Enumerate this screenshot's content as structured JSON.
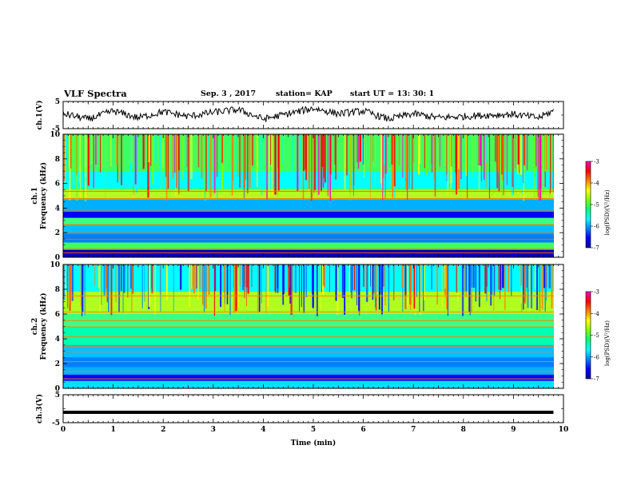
{
  "header": {
    "title": "VLF Spectra",
    "date": "Sep. 3 , 2017",
    "station": "station= KAP",
    "start": "start  UT =  13: 30: 1"
  },
  "colors": {
    "colormap": [
      "#0000aa",
      "#0000ff",
      "#0080ff",
      "#00ffff",
      "#00ff80",
      "#80ff00",
      "#ffff00",
      "#ff8000",
      "#ff0000",
      "#ff00c0",
      "#ffffff"
    ]
  },
  "chart_data": [
    {
      "id": "ch1-waveform",
      "type": "line",
      "ylabel": "ch.1(V)",
      "ylim": [
        -5,
        5
      ],
      "yticks": [
        "5",
        "-5"
      ],
      "xlim": [
        0,
        10
      ],
      "description_values": {
        "x": [
          0,
          0.5,
          1,
          1.5,
          2,
          2.5,
          3,
          3.5,
          4,
          4.5,
          5,
          5.5,
          6,
          6.5,
          7,
          7.5,
          8,
          8.5,
          9,
          9.5,
          9.8
        ],
        "y": [
          0.5,
          -1.5,
          1.5,
          -1,
          1.2,
          -0.5,
          1,
          2,
          -1.5,
          0.5,
          2.5,
          0.5,
          1.5,
          -1.5,
          0.5,
          -1,
          -0.5,
          0,
          0.3,
          -1,
          1.5
        ]
      }
    },
    {
      "id": "ch1-spectrogram",
      "type": "heatmap",
      "ylabel": "ch.1\nFrequency  (kHz)",
      "ylim": [
        0,
        10
      ],
      "yticks": [
        "0",
        "2",
        "4",
        "6",
        "8",
        "10"
      ],
      "xlim": [
        0,
        9.8
      ],
      "colorbar": {
        "label": "log(PSD)(V²/Hz)",
        "range": [
          -7,
          -3
        ],
        "ticks": [
          "-3",
          "-4",
          "-5",
          "-6",
          "-7"
        ]
      }
    },
    {
      "id": "ch2-spectrogram",
      "type": "heatmap",
      "ylabel": "ch.2\nFrequency  (kHz)",
      "ylim": [
        0,
        10
      ],
      "yticks": [
        "0",
        "2",
        "4",
        "6",
        "8",
        "10"
      ],
      "xlim": [
        0,
        9.8
      ],
      "colorbar": {
        "label": "log(PSD)(V²/Hz)",
        "range": [
          -7,
          -3
        ],
        "ticks": [
          "-3",
          "-4",
          "-5",
          "-6",
          "-7"
        ]
      }
    },
    {
      "id": "ch3-waveform",
      "type": "line",
      "ylabel": "ch.3(V)",
      "ylim": [
        -5,
        5
      ],
      "yticks": [
        "5",
        "-5"
      ],
      "x": [
        0,
        9.8
      ],
      "y": [
        -1.3,
        -1.3
      ]
    }
  ],
  "xaxis": {
    "label": "Time  (min)",
    "range": [
      0,
      10
    ],
    "ticks": [
      "0",
      "1",
      "2",
      "3",
      "4",
      "5",
      "6",
      "7",
      "8",
      "9",
      "10"
    ]
  }
}
